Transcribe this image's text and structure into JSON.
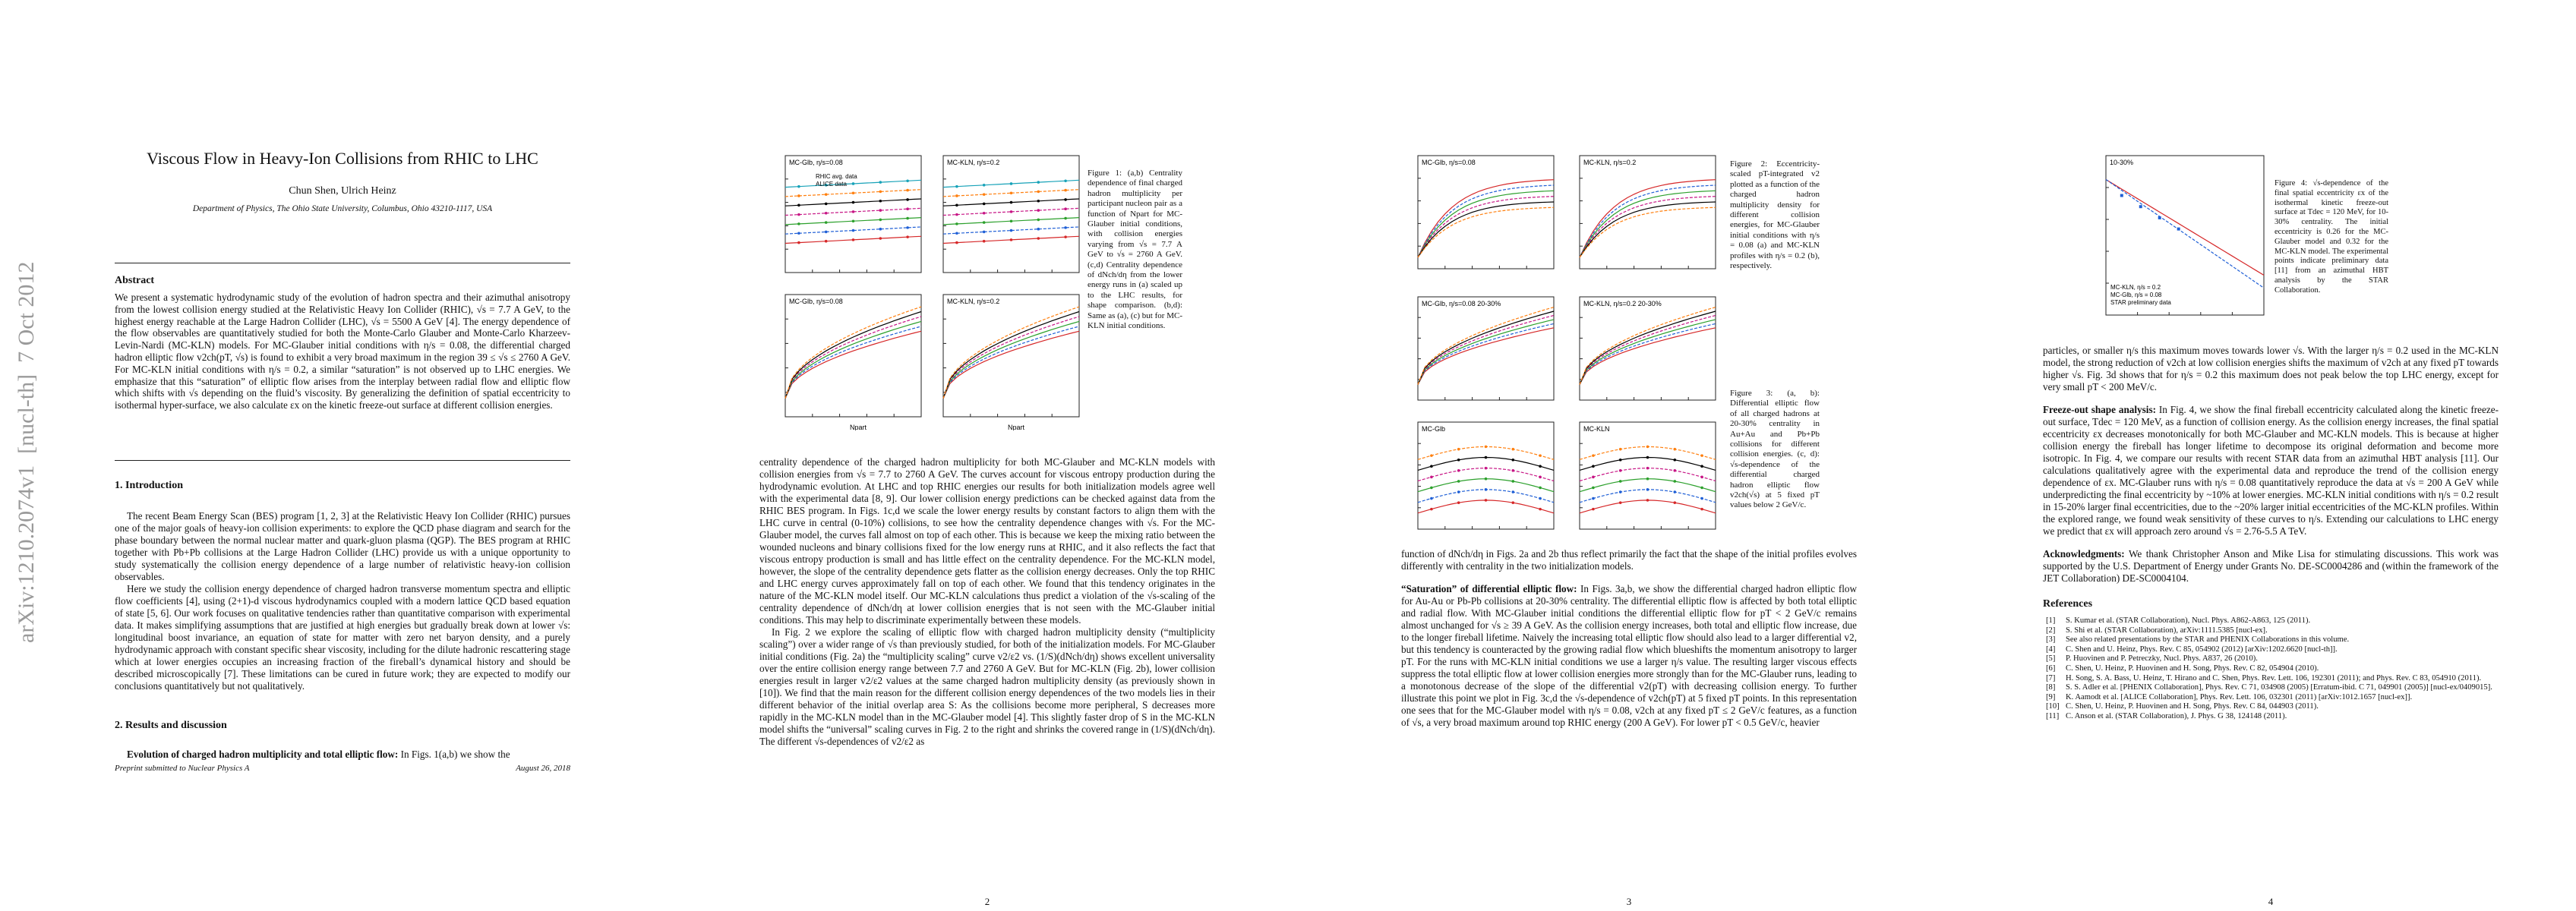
{
  "sidebar": "arXiv:1210.2074v1  [nucl-th]  7 Oct 2012",
  "page1": {
    "title": "Viscous Flow in Heavy-Ion Collisions from RHIC to LHC",
    "authors": "Chun Shen, Ulrich Heinz",
    "affiliation": "Department of Physics, The Ohio State University, Columbus, Ohio 43210-1117, USA",
    "abstract_heading": "Abstract",
    "abstract": "We present a systematic hydrodynamic study of the evolution of hadron spectra and their azimuthal anisotropy from the lowest collision energy studied at the Relativistic Heavy Ion Collider (RHIC), √s = 7.7 A GeV, to the highest energy reachable at the Large Hadron Collider (LHC), √s = 5500 A GeV [4]. The energy dependence of the flow observables are quantitatively studied for both the Monte-Carlo Glauber and Monte-Carlo Kharzeev-Levin-Nardi (MC-KLN) models. For MC-Glauber initial conditions with η/s = 0.08, the differential charged hadron elliptic flow v2ch(pT, √s) is found to exhibit a very broad maximum in the region 39 ≤ √s ≤ 2760 A GeV. For MC-KLN initial conditions with η/s = 0.2, a similar “saturation” is not observed up to LHC energies. We emphasize that this “saturation” of elliptic flow arises from the interplay between radial flow and elliptic flow which shifts with √s depending on the fluid’s viscosity. By generalizing the definition of spatial eccentricity to isothermal hyper-surface, we also calculate εx on the kinetic freeze-out surface at different collision energies.",
    "intro_heading": "1. Introduction",
    "intro": [
      "The recent Beam Energy Scan (BES) program [1, 2, 3] at the Relativistic Heavy Ion Collider (RHIC) pursues one of the major goals of heavy-ion collision experiments: to explore the QCD phase diagram and search for the phase boundary between the normal nuclear matter and quark-gluon plasma (QGP). The BES program at RHIC together with Pb+Pb collisions at the Large Hadron Collider (LHC) provide us with a unique opportunity to study systematically the collision energy dependence of a large number of relativistic heavy-ion collision observables.",
      "Here we study the collision energy dependence of charged hadron transverse momentum spectra and elliptic flow coefficients [4], using (2+1)-d viscous hydrodynamics coupled with a modern lattice QCD based equation of state [5, 6]. Our work focuses on qualitative tendencies rather than quantitative comparison with experimental data. It makes simplifying assumptions that are justified at high energies but gradually break down at lower √s: longitudinal boost invariance, an equation of state for matter with zero net baryon density, and a purely hydrodynamic approach with constant specific shear viscosity, including for the dilute hadronic rescattering stage which at lower energies occupies an increasing fraction of the fireball’s dynamical history and should be described microscopically [7]. These limitations can be cured in future work; they are expected to modify our conclusions quantitatively but not qualitatively."
    ],
    "results_heading": "2. Results and discussion",
    "results_para": {
      "lead": "Evolution of charged hadron multiplicity and total elliptic flow:",
      "text": " In Figs. 1(a,b) we show the"
    },
    "footer_left": "Preprint submitted to Nuclear Physics A",
    "footer_right": "August 26, 2018"
  },
  "page2": {
    "figure": {
      "panel_labels": [
        "MC-Glb, η/s=0.08",
        "MC-KLN, η/s=0.2",
        "MC-Glb, η/s=0.08",
        "MC-KLN, η/s=0.2"
      ],
      "legend": [
        "RHIC avg. data",
        "ALICE data"
      ],
      "x_label": "Npart",
      "caption": "Figure 1: (a,b) Centrality dependence of final charged hadron multiplicity per participant nucleon pair as a function of Npart for MC-Glauber initial conditions, with collision energies varying from √s = 7.7 A GeV to √s = 2760 A GeV. (c,d) Centrality dependence of dNch/dη from the lower energy runs in (a) scaled up to the LHC results, for shape comparison. (b,d): Same as (a), (c) but for MC-KLN initial conditions."
    },
    "paragraphs": [
      "centrality dependence of the charged hadron multiplicity for both MC-Glauber and MC-KLN models with collision energies from √s = 7.7 to 2760 A GeV. The curves account for viscous entropy production during the hydrodynamic evolution. At LHC and top RHIC energies our results for both initialization models agree well with the experimental data [8, 9]. Our lower collision energy predictions can be checked against data from the RHIC BES program. In Figs. 1c,d we scale the lower energy results by constant factors to align them with the LHC curve in central (0-10%) collisions, to see how the centrality dependence changes with √s. For the MC-Glauber model, the curves fall almost on top of each other. This is because we keep the mixing ratio between the wounded nucleons and binary collisions fixed for the low energy runs at RHIC, and it also reflects the fact that viscous entropy production is small and has little effect on the centrality dependence. For the MC-KLN model, however, the slope of the centrality dependence gets flatter as the collision energy decreases. Only the top RHIC and LHC energy curves approximately fall on top of each other. We found that this tendency originates in the nature of the MC-KLN model itself. Our MC-KLN calculations thus predict a violation of the √s-scaling of the centrality dependence of dNch/dη at lower collision energies that is not seen with the MC-Glauber initial conditions. This may help to discriminate experimentally between these models.",
      "In Fig. 2 we explore the scaling of elliptic flow with charged hadron multiplicity density (“multiplicity scaling”) over a wider range of √s than previously studied, for both of the initialization models. For MC-Glauber initial conditions (Fig. 2a) the “multiplicity scaling” curve v2/ε2 vs. (1/S)(dNch/dη) shows excellent universality over the entire collision energy range between 7.7 and 2760 A GeV. But for MC-KLN (Fig. 2b), lower collision energies result in larger v2/ε2 values at the same charged hadron multiplicity density (as previously shown in [10]). We find that the main reason for the different collision energy dependences of the two models lies in their different behavior of the initial overlap area S: As the collisions become more peripheral, S decreases more rapidly in the MC-KLN model than in the MC-Glauber model [4]. This slightly faster drop of S in the MC-KLN model shifts the “universal” scaling curves in Fig. 2 to the right and shrinks the covered range in (1/S)(dNch/dη). The different √s-dependences of v2/ε2 as"
    ],
    "page_number": "2"
  },
  "page3": {
    "figure2": {
      "panel_labels": [
        "MC-Glb, η/s=0.08",
        "MC-KLN, η/s=0.2"
      ],
      "caption": "Figure 2: Eccentricity-scaled pT-integrated v2 plotted as a function of the charged hadron multiplicity density for different collision energies, for MC-Glauber initial conditions with η/s = 0.08 (a) and MC-KLN profiles with η/s = 0.2 (b), respectively."
    },
    "figure3": {
      "panel_labels": [
        "MC-Glb, η/s=0.08  20-30%",
        "MC-KLN, η/s=0.2  20-30%",
        "MC-Glb",
        "MC-KLN"
      ],
      "caption": "Figure 3: (a, b): Differential elliptic flow of all charged hadrons at 20-30% centrality in Au+Au and Pb+Pb collisions for different collision energies. (c, d): √s-dependence of the differential charged hadron elliptic flow v2ch(√s) at 5 fixed pT values below 2 GeV/c."
    },
    "paragraphs": [
      "function of dNch/dη in Figs. 2a and 2b thus reflect primarily the fact that the shape of the initial profiles evolves differently with centrality in the two initialization models."
    ],
    "saturation": {
      "lead": "“Saturation” of differential elliptic flow:",
      "text": " In Figs. 3a,b, we show the differential charged hadron elliptic flow for Au-Au or Pb-Pb collisions at 20-30% centrality. The differential elliptic flow is affected by both total elliptic and radial flow. With MC-Glauber initial conditions the differential elliptic flow for pT < 2 GeV/c remains almost unchanged for √s ≥ 39 A GeV. As the collision energy increases, both total and elliptic flow increase, due to the longer fireball lifetime. Naively the increasing total elliptic flow should also lead to a larger differential v2, but this tendency is counteracted by the growing radial flow which blueshifts the momentum anisotropy to larger pT. For the runs with MC-KLN initial conditions we use a larger η/s value. The resulting larger viscous effects suppress the total elliptic flow at lower collision energies more strongly than for the MC-Glauber runs, leading to a monotonous decrease of the slope of the differential v2(pT) with decreasing collision energy. To further illustrate this point we plot in Fig. 3c,d the √s-dependence of v2ch(pT) at 5 fixed pT points. In this representation one sees that for the MC-Glauber model with η/s = 0.08, v2ch at any fixed pT ≤ 2 GeV/c features, as a function of √s, a very broad maximum around top RHIC energy (200 A GeV). For lower pT < 0.5 GeV/c, heavier"
    },
    "page_number": "3"
  },
  "page4": {
    "figure": {
      "panel_label": "10-30%",
      "legend": [
        "MC-KLN, η/s = 0.2",
        "MC-Glb, η/s = 0.08",
        "STAR preliminary data"
      ],
      "caption": "Figure 4: √s-dependence of the final spatial eccentricity εx of the isothermal kinetic freeze-out surface at Tdec = 120 MeV, for 10-30% centrality. The initial eccentricity is 0.26 for the MC-Glauber model and 0.32 for the MC-KLN model. The experimental points indicate preliminary data [11] from an azimuthal HBT analysis by the STAR Collaboration."
    },
    "paragraphs": [
      "particles, or smaller η/s this maximum moves towards lower √s. With the larger η/s = 0.2 used in the MC-KLN model, the strong reduction of v2ch at low collision energies shifts the maximum of v2ch at any fixed pT towards higher √s. Fig. 3d shows that for η/s = 0.2 this maximum does not peak below the top LHC energy, except for very small pT < 200 MeV/c."
    ],
    "freezeout": {
      "lead": "Freeze-out shape analysis:",
      "text": " In Fig. 4, we show the final fireball eccentricity calculated along the kinetic freeze-out surface, Tdec = 120 MeV, as a function of collision energy. As the collision energy increases, the final spatial eccentricity εx decreases monotonically for both MC-Glauber and MC-KLN models. This is because at higher collision energy the fireball has longer lifetime to decompose its original deformation and become more isotropic. In Fig. 4, we compare our results with recent STAR data from an azimuthal HBT analysis [11]. Our calculations qualitatively agree with the experimental data and reproduce the trend of the collision energy dependence of εx. MC-Glauber runs with η/s = 0.08 quantitatively reproduce the data at √s = 200 A GeV while underpredicting the final eccentricity by ~10% at lower energies. MC-KLN initial conditions with η/s = 0.2 result in 15-20% larger final eccentricities, due to the ~20% larger initial eccentricities of the MC-KLN profiles. Within the explored range, we found weak sensitivity of these curves to η/s. Extending our calculations to LHC energy we predict that εx will approach zero around √s = 2.76-5.5 A TeV."
    },
    "acknowledgments": {
      "lead": "Acknowledgments:",
      "text": " We thank Christopher Anson and Mike Lisa for stimulating discussions. This work was supported by the U.S. Department of Energy under Grants No. DE-SC0004286 and (within the framework of the JET Collaboration) DE-SC0004104."
    },
    "references_heading": "References",
    "references": [
      {
        "num": "[1]",
        "text": "S. Kumar et al. (STAR Collaboration), Nucl. Phys. A862-A863, 125 (2011)."
      },
      {
        "num": "[2]",
        "text": "S. Shi et al. (STAR Collaboration), arXiv:1111.5385 [nucl-ex]."
      },
      {
        "num": "[3]",
        "text": "See also related presentations by the STAR and PHENIX Collaborations in this volume."
      },
      {
        "num": "[4]",
        "text": "C. Shen and U. Heinz, Phys. Rev. C 85, 054902 (2012) [arXiv:1202.6620 [nucl-th]]."
      },
      {
        "num": "[5]",
        "text": "P. Huovinen and P. Petreczky, Nucl. Phys. A837, 26 (2010)."
      },
      {
        "num": "[6]",
        "text": "C. Shen, U. Heinz, P. Huovinen and H. Song, Phys. Rev. C 82, 054904 (2010)."
      },
      {
        "num": "[7]",
        "text": "H. Song, S. A. Bass, U. Heinz, T. Hirano and C. Shen, Phys. Rev. Lett. 106, 192301 (2011); and Phys. Rev. C 83, 054910 (2011)."
      },
      {
        "num": "[8]",
        "text": "S. S. Adler et al. [PHENIX Collaboration], Phys. Rev. C 71, 034908 (2005) [Erratum-ibid. C 71, 049901 (2005)] [nucl-ex/0409015]."
      },
      {
        "num": "[9]",
        "text": "K. Aamodt et al. [ALICE Collaboration], Phys. Rev. Lett. 106, 032301 (2011) [arXiv:1012.1657 [nucl-ex]]."
      },
      {
        "num": "[10]",
        "text": "C. Shen, U. Heinz, P. Huovinen and H. Song, Phys. Rev. C 84, 044903 (2011)."
      },
      {
        "num": "[11]",
        "text": "C. Anson et al. (STAR Collaboration), J. Phys. G 38, 124148 (2011)."
      }
    ],
    "page_number": "4"
  }
}
